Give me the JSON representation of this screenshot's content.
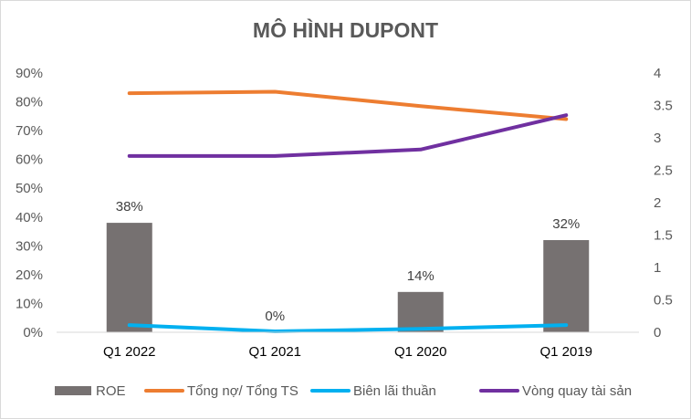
{
  "chart_data": {
    "type": "bar+line",
    "title": "MÔ HÌNH DUPONT",
    "categories": [
      "Q1 2022",
      "Q1 2021",
      "Q1 2020",
      "Q1 2019"
    ],
    "y_left": {
      "min": 0,
      "max": 0.9,
      "step": 0.1,
      "tick_labels": [
        "0%",
        "10%",
        "20%",
        "30%",
        "40%",
        "50%",
        "60%",
        "70%",
        "80%",
        "90%"
      ]
    },
    "y_right": {
      "min": 0,
      "max": 4,
      "step": 0.5,
      "tick_labels": [
        "0",
        "0.5",
        "1",
        "1.5",
        "2",
        "2.5",
        "3",
        "3.5",
        "4"
      ]
    },
    "series": [
      {
        "name": "ROE",
        "kind": "bar",
        "axis": "left",
        "color": "#767171",
        "values": [
          0.38,
          0.0,
          0.14,
          0.32
        ],
        "data_labels": [
          "38%",
          "0%",
          "14%",
          "32%"
        ]
      },
      {
        "name": "Tổng nợ/ Tổng TS",
        "kind": "line",
        "axis": "left",
        "color": "#ED7D31",
        "values": [
          0.83,
          0.835,
          0.785,
          0.74
        ]
      },
      {
        "name": "Biên lãi thuần",
        "kind": "line",
        "axis": "left",
        "color": "#00B0F0",
        "values": [
          0.025,
          0.003,
          0.012,
          0.025
        ]
      },
      {
        "name": "Vòng quay tài sản",
        "kind": "line",
        "axis": "right",
        "color": "#7030A0",
        "values": [
          2.72,
          2.72,
          2.82,
          3.35
        ]
      }
    ],
    "legend_position": "bottom",
    "grid": false
  }
}
